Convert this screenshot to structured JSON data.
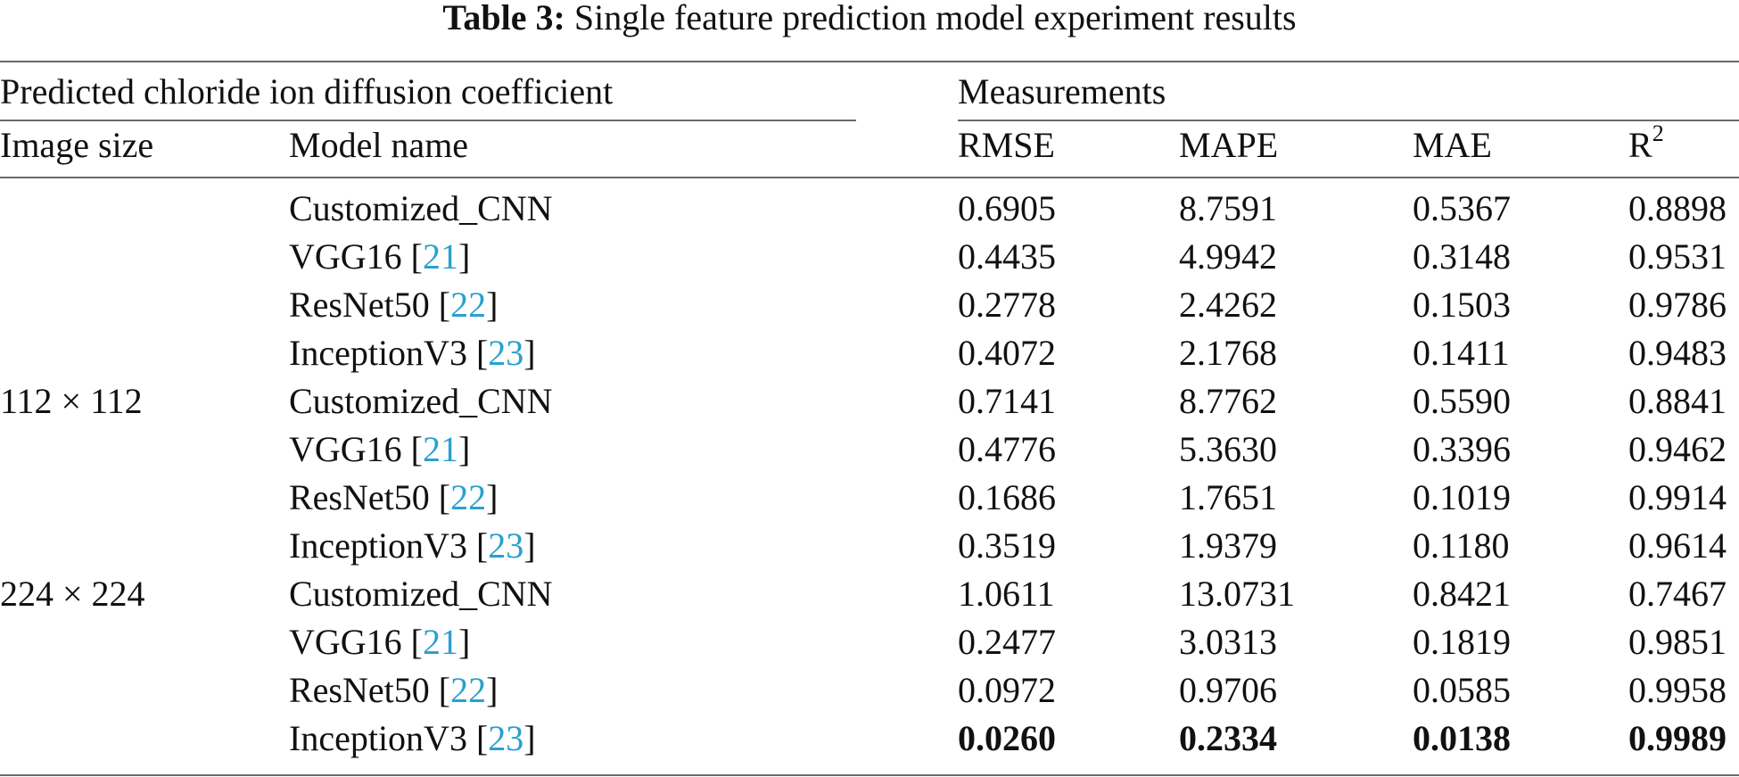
{
  "caption": {
    "label": "Table 3:",
    "text": "Single feature prediction model experiment results"
  },
  "header": {
    "group_left": "Predicted chloride ion diffusion coefficient",
    "group_right": "Measurements",
    "columns": [
      "Image size",
      "Model name",
      "RMSE",
      "MAPE",
      "MAE",
      "R",
      "2"
    ]
  },
  "rows": [
    {
      "size": "",
      "model": "Customized_CNN",
      "ref": "",
      "rmse": "0.6905",
      "mape": "8.7591",
      "mae": "0.5367",
      "r2": "0.8898"
    },
    {
      "size": "",
      "model": "VGG16 [",
      "ref": "21",
      "rmse": "0.4435",
      "mape": "4.9942",
      "mae": "0.3148",
      "r2": "0.9531"
    },
    {
      "size": "",
      "model": "ResNet50 [",
      "ref": "22",
      "rmse": "0.2778",
      "mape": "2.4262",
      "mae": "0.1503",
      "r2": "0.9786"
    },
    {
      "size": "",
      "model": "InceptionV3 [",
      "ref": "23",
      "rmse": "0.4072",
      "mape": "2.1768",
      "mae": "0.1411",
      "r2": "0.9483"
    },
    {
      "size": "112 × 112",
      "model": "Customized_CNN",
      "ref": "",
      "rmse": "0.7141",
      "mape": "8.7762",
      "mae": "0.5590",
      "r2": "0.8841"
    },
    {
      "size": "",
      "model": "VGG16 [",
      "ref": "21",
      "rmse": "0.4776",
      "mape": "5.3630",
      "mae": "0.3396",
      "r2": "0.9462"
    },
    {
      "size": "",
      "model": "ResNet50 [",
      "ref": "22",
      "rmse": "0.1686",
      "mape": "1.7651",
      "mae": "0.1019",
      "r2": "0.9914"
    },
    {
      "size": "",
      "model": "InceptionV3 [",
      "ref": "23",
      "rmse": "0.3519",
      "mape": "1.9379",
      "mae": "0.1180",
      "r2": "0.9614"
    },
    {
      "size": "224 × 224",
      "model": "Customized_CNN",
      "ref": "",
      "rmse": "1.0611",
      "mape": "13.0731",
      "mae": "0.8421",
      "r2": "0.7467"
    },
    {
      "size": "",
      "model": "VGG16 [",
      "ref": "21",
      "rmse": "0.2477",
      "mape": "3.0313",
      "mae": "0.1819",
      "r2": "0.9851"
    },
    {
      "size": "",
      "model": "ResNet50 [",
      "ref": "22",
      "rmse": "0.0972",
      "mape": "0.9706",
      "mae": "0.0585",
      "r2": "0.9958"
    },
    {
      "size": "",
      "model": "InceptionV3 [",
      "ref": "23",
      "rmse": "0.0260",
      "mape": "0.2334",
      "mae": "0.0138",
      "r2": "0.9989",
      "bold": true
    }
  ]
}
